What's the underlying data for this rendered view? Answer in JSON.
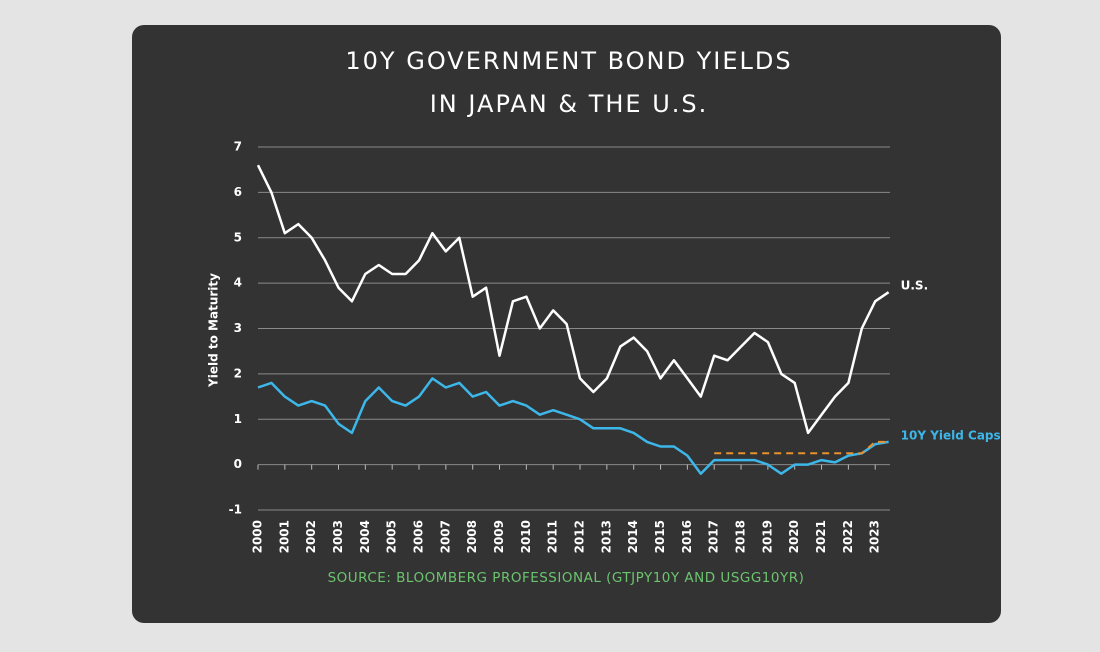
{
  "chart_data": {
    "type": "line",
    "title": [
      "10Y GOVERNMENT BOND YIELDS",
      "IN JAPAN & THE U.S."
    ],
    "y_label": "Yield to Maturity",
    "source": "SOURCE: BLOOMBERG PROFESSIONAL (GTJPY10Y AND USGG10YR)",
    "x": [
      2000,
      2000.5,
      2001,
      2001.5,
      2002,
      2002.5,
      2003,
      2003.5,
      2004,
      2004.5,
      2005,
      2005.5,
      2006,
      2006.5,
      2007,
      2007.5,
      2008,
      2008.5,
      2009,
      2009.5,
      2010,
      2010.5,
      2011,
      2011.5,
      2012,
      2012.5,
      2013,
      2013.5,
      2014,
      2014.5,
      2015,
      2015.5,
      2016,
      2016.5,
      2017,
      2017.5,
      2018,
      2018.5,
      2019,
      2019.5,
      2020,
      2020.5,
      2021,
      2021.5,
      2022,
      2022.5,
      2023,
      2023.5
    ],
    "series": [
      {
        "name": "U.S.",
        "color": "#ffffff",
        "label_color": "#ffffff",
        "values": [
          6.6,
          6.0,
          5.1,
          5.3,
          5.0,
          4.5,
          3.9,
          3.6,
          4.2,
          4.4,
          4.2,
          4.2,
          4.5,
          5.1,
          4.7,
          5.0,
          3.7,
          3.9,
          2.4,
          3.6,
          3.7,
          3.0,
          3.4,
          3.1,
          1.9,
          1.6,
          1.9,
          2.6,
          2.8,
          2.5,
          1.9,
          2.3,
          1.9,
          1.5,
          2.4,
          2.3,
          2.6,
          2.9,
          2.7,
          2.0,
          1.8,
          0.7,
          1.1,
          1.5,
          1.8,
          3.0,
          3.6,
          3.8
        ]
      },
      {
        "color": "#3db7e9",
        "values": [
          1.7,
          1.8,
          1.5,
          1.3,
          1.4,
          1.3,
          0.9,
          0.7,
          1.4,
          1.7,
          1.4,
          1.3,
          1.5,
          1.9,
          1.7,
          1.8,
          1.5,
          1.6,
          1.3,
          1.4,
          1.3,
          1.1,
          1.2,
          1.1,
          1.0,
          0.8,
          0.8,
          0.8,
          0.7,
          0.5,
          0.4,
          0.4,
          0.2,
          -0.2,
          0.1,
          0.1,
          0.1,
          0.1,
          0.0,
          -0.2,
          0.0,
          0.0,
          0.1,
          0.05,
          0.2,
          0.25,
          0.45,
          0.5
        ]
      },
      {
        "name": "10Y Yield Caps",
        "color": "#e8912d",
        "label_color": "#3db7e9",
        "dashed": true,
        "values": [
          null,
          null,
          null,
          null,
          null,
          null,
          null,
          null,
          null,
          null,
          null,
          null,
          null,
          null,
          null,
          null,
          null,
          null,
          null,
          null,
          null,
          null,
          null,
          null,
          null,
          null,
          null,
          null,
          null,
          null,
          null,
          null,
          null,
          null,
          0.25,
          0.25,
          0.25,
          0.25,
          0.25,
          0.25,
          0.25,
          0.25,
          0.25,
          0.25,
          0.25,
          0.25,
          0.5,
          0.5
        ]
      }
    ],
    "xlim": [
      2000,
      2023.7
    ],
    "xticks": [
      2000,
      2001,
      2002,
      2003,
      2004,
      2005,
      2006,
      2007,
      2008,
      2009,
      2010,
      2011,
      2012,
      2013,
      2014,
      2015,
      2016,
      2017,
      2018,
      2019,
      2020,
      2021,
      2022,
      2023
    ],
    "ylim": [
      -1,
      7
    ],
    "yticks": [
      -1,
      0,
      1,
      2,
      3,
      4,
      5,
      6,
      7
    ],
    "grid": true
  }
}
